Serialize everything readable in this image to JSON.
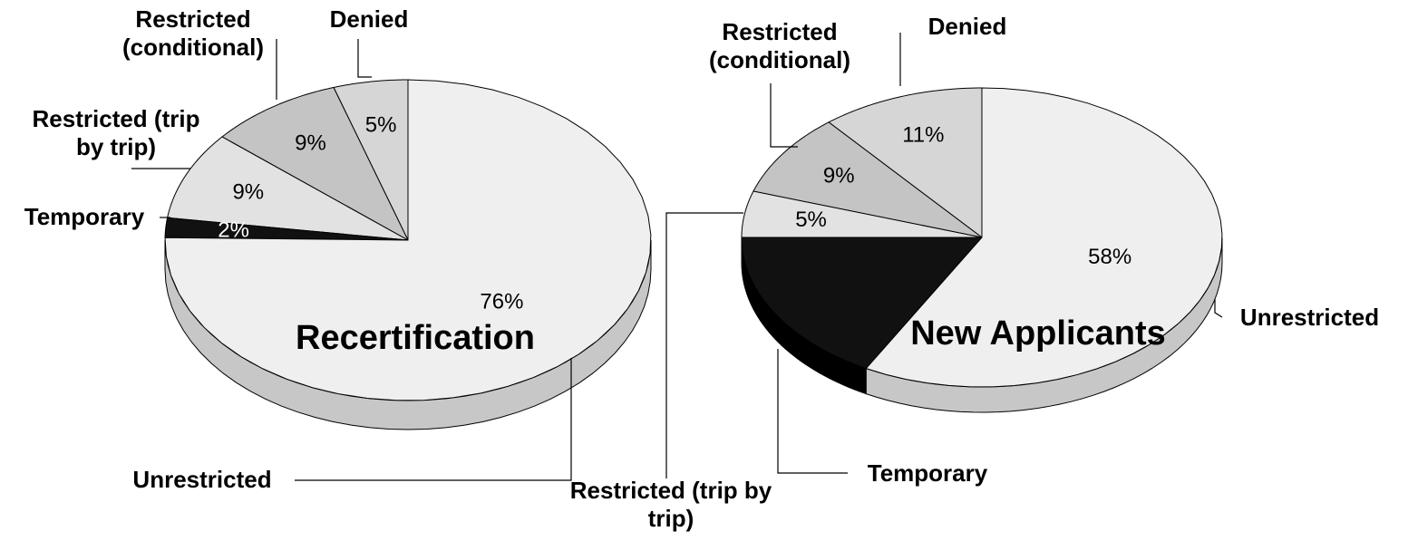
{
  "chart_data": [
    {
      "type": "pie",
      "title": "Recertification",
      "categories": [
        "Denied",
        "Restricted (conditional)",
        "Restricted (trip by trip)",
        "Temporary",
        "Unrestricted"
      ],
      "values": [
        5,
        9,
        9,
        2,
        76
      ],
      "value_labels": [
        "5%",
        "9%",
        "9%",
        "2%",
        "76%"
      ],
      "colors": [
        "#d6d6d6",
        "#c4c4c4",
        "#e2e2e2",
        "#111111",
        "#efefef"
      ]
    },
    {
      "type": "pie",
      "title": "New Applicants",
      "categories": [
        "Denied",
        "Restricted (conditional)",
        "Restricted (trip by trip)",
        "Temporary",
        "Unrestricted"
      ],
      "values": [
        11,
        9,
        5,
        17,
        58
      ],
      "value_labels": [
        "11%",
        "9%",
        "5%",
        null,
        "58%"
      ],
      "colors": [
        "#d6d6d6",
        "#c4c4c4",
        "#e2e2e2",
        "#111111",
        "#efefef"
      ]
    }
  ]
}
